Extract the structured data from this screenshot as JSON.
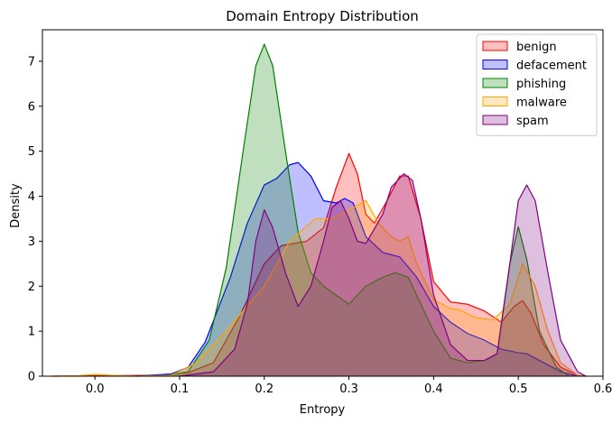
{
  "chart_data": {
    "type": "area",
    "title": "Domain Entropy Distribution",
    "xlabel": "Entropy",
    "ylabel": "Density",
    "xlim": [
      -0.062,
      0.6
    ],
    "ylim": [
      0,
      7.7
    ],
    "xticks": [
      0.0,
      0.1,
      0.2,
      0.3,
      0.4,
      0.5,
      0.6
    ],
    "yticks": [
      0,
      1,
      2,
      3,
      4,
      5,
      6,
      7
    ],
    "xtick_labels": [
      "0.0",
      "0.1",
      "0.2",
      "0.3",
      "0.4",
      "0.5",
      "0.6"
    ],
    "ytick_labels": [
      "0",
      "1",
      "2",
      "3",
      "4",
      "5",
      "6",
      "7"
    ],
    "grid": false,
    "legend_position": "top-right",
    "series": [
      {
        "name": "benign",
        "color": "#ff0000",
        "points": [
          [
            -0.05,
            0
          ],
          [
            0.0,
            0.01
          ],
          [
            0.08,
            0.02
          ],
          [
            0.11,
            0.08
          ],
          [
            0.14,
            0.3
          ],
          [
            0.17,
            1.3
          ],
          [
            0.2,
            2.5
          ],
          [
            0.22,
            2.9
          ],
          [
            0.25,
            3.0
          ],
          [
            0.27,
            3.3
          ],
          [
            0.285,
            4.2
          ],
          [
            0.3,
            4.95
          ],
          [
            0.31,
            4.5
          ],
          [
            0.32,
            3.6
          ],
          [
            0.33,
            3.4
          ],
          [
            0.345,
            3.9
          ],
          [
            0.36,
            4.45
          ],
          [
            0.37,
            4.45
          ],
          [
            0.385,
            3.5
          ],
          [
            0.4,
            2.1
          ],
          [
            0.42,
            1.65
          ],
          [
            0.44,
            1.6
          ],
          [
            0.46,
            1.45
          ],
          [
            0.48,
            1.2
          ],
          [
            0.495,
            1.55
          ],
          [
            0.505,
            1.68
          ],
          [
            0.515,
            1.4
          ],
          [
            0.53,
            0.7
          ],
          [
            0.55,
            0.2
          ],
          [
            0.57,
            0.02
          ],
          [
            0.58,
            0
          ]
        ]
      },
      {
        "name": "defacement",
        "color": "#0000ff",
        "points": [
          [
            0.05,
            0
          ],
          [
            0.09,
            0.05
          ],
          [
            0.11,
            0.2
          ],
          [
            0.13,
            0.75
          ],
          [
            0.16,
            2.2
          ],
          [
            0.18,
            3.4
          ],
          [
            0.2,
            4.25
          ],
          [
            0.215,
            4.4
          ],
          [
            0.23,
            4.7
          ],
          [
            0.24,
            4.75
          ],
          [
            0.255,
            4.45
          ],
          [
            0.27,
            3.9
          ],
          [
            0.285,
            3.85
          ],
          [
            0.295,
            3.95
          ],
          [
            0.305,
            3.85
          ],
          [
            0.32,
            3.1
          ],
          [
            0.34,
            2.75
          ],
          [
            0.36,
            2.65
          ],
          [
            0.38,
            2.2
          ],
          [
            0.4,
            1.55
          ],
          [
            0.42,
            1.2
          ],
          [
            0.44,
            0.95
          ],
          [
            0.46,
            0.8
          ],
          [
            0.48,
            0.6
          ],
          [
            0.5,
            0.52
          ],
          [
            0.51,
            0.5
          ],
          [
            0.53,
            0.3
          ],
          [
            0.55,
            0.1
          ],
          [
            0.57,
            0
          ]
        ]
      },
      {
        "name": "phishing",
        "color": "#008000",
        "points": [
          [
            0.08,
            0
          ],
          [
            0.11,
            0.1
          ],
          [
            0.135,
            0.8
          ],
          [
            0.155,
            2.4
          ],
          [
            0.175,
            5.0
          ],
          [
            0.19,
            6.9
          ],
          [
            0.2,
            7.38
          ],
          [
            0.21,
            6.9
          ],
          [
            0.225,
            5.0
          ],
          [
            0.24,
            3.2
          ],
          [
            0.255,
            2.3
          ],
          [
            0.27,
            2.0
          ],
          [
            0.285,
            1.8
          ],
          [
            0.3,
            1.6
          ],
          [
            0.32,
            2.0
          ],
          [
            0.34,
            2.2
          ],
          [
            0.355,
            2.3
          ],
          [
            0.37,
            2.2
          ],
          [
            0.385,
            1.6
          ],
          [
            0.4,
            1.0
          ],
          [
            0.42,
            0.4
          ],
          [
            0.44,
            0.3
          ],
          [
            0.46,
            0.35
          ],
          [
            0.475,
            0.5
          ],
          [
            0.49,
            2.5
          ],
          [
            0.5,
            3.32
          ],
          [
            0.51,
            2.6
          ],
          [
            0.525,
            1.0
          ],
          [
            0.545,
            0.2
          ],
          [
            0.56,
            0
          ]
        ]
      },
      {
        "name": "malware",
        "color": "#ffa500",
        "points": [
          [
            -0.05,
            0
          ],
          [
            -0.02,
            0.01
          ],
          [
            0.0,
            0.04
          ],
          [
            0.02,
            0.02
          ],
          [
            0.05,
            0
          ],
          [
            0.09,
            0.02
          ],
          [
            0.12,
            0.3
          ],
          [
            0.15,
            0.9
          ],
          [
            0.2,
            2.0
          ],
          [
            0.23,
            3.0
          ],
          [
            0.26,
            3.5
          ],
          [
            0.28,
            3.5
          ],
          [
            0.3,
            3.7
          ],
          [
            0.32,
            3.9
          ],
          [
            0.335,
            3.4
          ],
          [
            0.35,
            3.1
          ],
          [
            0.36,
            3.0
          ],
          [
            0.37,
            3.1
          ],
          [
            0.38,
            2.5
          ],
          [
            0.4,
            1.7
          ],
          [
            0.42,
            1.5
          ],
          [
            0.43,
            1.48
          ],
          [
            0.45,
            1.3
          ],
          [
            0.47,
            1.25
          ],
          [
            0.49,
            1.6
          ],
          [
            0.505,
            2.5
          ],
          [
            0.52,
            2.0
          ],
          [
            0.535,
            1.0
          ],
          [
            0.55,
            0.3
          ],
          [
            0.57,
            0.02
          ],
          [
            0.58,
            0
          ]
        ]
      },
      {
        "name": "spam",
        "color": "#800080",
        "points": [
          [
            0.1,
            0
          ],
          [
            0.14,
            0.1
          ],
          [
            0.165,
            0.6
          ],
          [
            0.18,
            1.6
          ],
          [
            0.19,
            3.0
          ],
          [
            0.2,
            3.7
          ],
          [
            0.21,
            3.3
          ],
          [
            0.225,
            2.3
          ],
          [
            0.24,
            1.55
          ],
          [
            0.255,
            2.0
          ],
          [
            0.27,
            3.0
          ],
          [
            0.28,
            3.75
          ],
          [
            0.29,
            3.9
          ],
          [
            0.3,
            3.5
          ],
          [
            0.31,
            3.0
          ],
          [
            0.32,
            2.95
          ],
          [
            0.34,
            3.6
          ],
          [
            0.35,
            4.2
          ],
          [
            0.365,
            4.5
          ],
          [
            0.375,
            4.35
          ],
          [
            0.385,
            3.5
          ],
          [
            0.4,
            1.8
          ],
          [
            0.42,
            0.7
          ],
          [
            0.44,
            0.35
          ],
          [
            0.46,
            0.35
          ],
          [
            0.475,
            0.5
          ],
          [
            0.49,
            2.5
          ],
          [
            0.5,
            3.9
          ],
          [
            0.51,
            4.25
          ],
          [
            0.52,
            3.9
          ],
          [
            0.535,
            2.3
          ],
          [
            0.55,
            0.8
          ],
          [
            0.57,
            0.1
          ],
          [
            0.58,
            0
          ]
        ]
      }
    ]
  }
}
